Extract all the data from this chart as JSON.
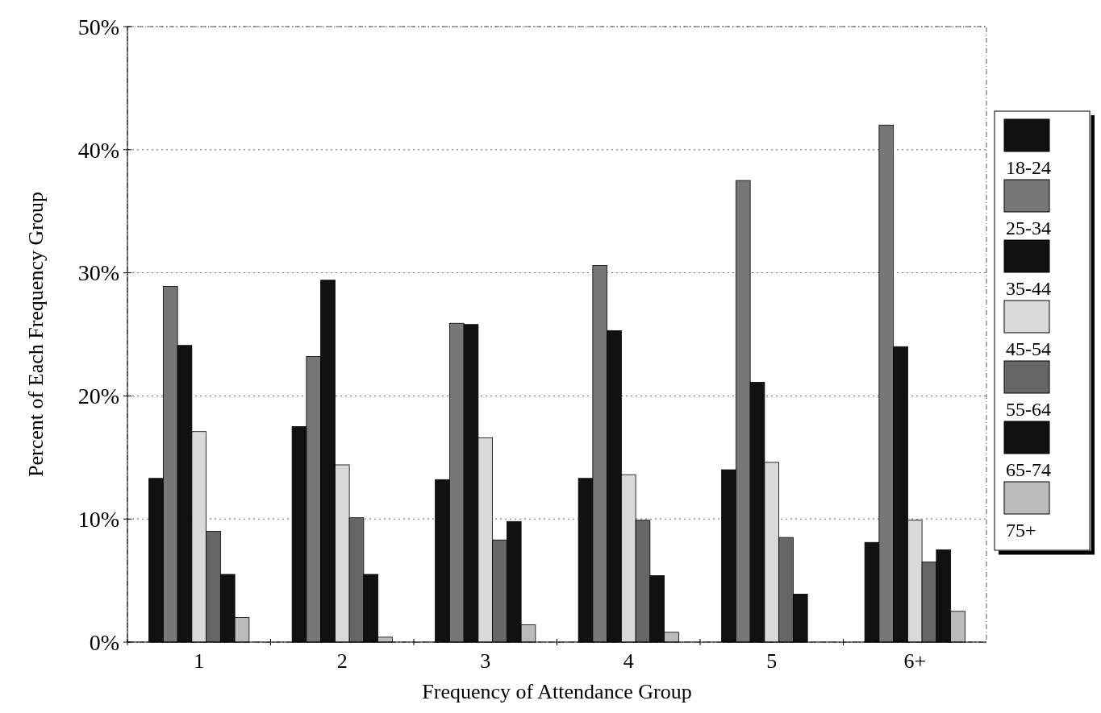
{
  "chart_data": {
    "type": "bar",
    "xlabel": "Frequency of Attendance Group",
    "ylabel": "Percent of Each Frequency Group",
    "categories": [
      "1",
      "2",
      "3",
      "4",
      "5",
      "6+"
    ],
    "series": [
      {
        "name": "18-24",
        "color": "#111111",
        "values": [
          13.3,
          17.5,
          13.2,
          13.3,
          14.0,
          8.1
        ]
      },
      {
        "name": "25-34",
        "color": "#777777",
        "values": [
          28.9,
          23.2,
          25.9,
          30.6,
          37.5,
          42.0
        ]
      },
      {
        "name": "35-44",
        "color": "#111111",
        "values": [
          24.1,
          29.4,
          25.8,
          25.3,
          21.1,
          24.0
        ]
      },
      {
        "name": "45-54",
        "color": "#d9d9d9",
        "values": [
          17.1,
          14.4,
          16.6,
          13.6,
          14.6,
          9.9
        ]
      },
      {
        "name": "55-64",
        "color": "#666666",
        "values": [
          9.0,
          10.1,
          8.3,
          9.9,
          8.5,
          6.5
        ]
      },
      {
        "name": "65-74",
        "color": "#111111",
        "values": [
          5.5,
          5.5,
          9.8,
          5.4,
          3.9,
          7.5
        ]
      },
      {
        "name": "75+",
        "color": "#bbbbbb",
        "values": [
          2.0,
          0.4,
          1.4,
          0.8,
          0,
          2.5
        ]
      }
    ],
    "ylim": [
      0,
      50
    ],
    "yticks": [
      {
        "value": 0,
        "label": "0%"
      },
      {
        "value": 10,
        "label": "10%"
      },
      {
        "value": 20,
        "label": "20%"
      },
      {
        "value": 30,
        "label": "30%"
      },
      {
        "value": 40,
        "label": "40%"
      },
      {
        "value": 50,
        "label": "50%"
      }
    ],
    "grid": "y",
    "legend": "right"
  }
}
